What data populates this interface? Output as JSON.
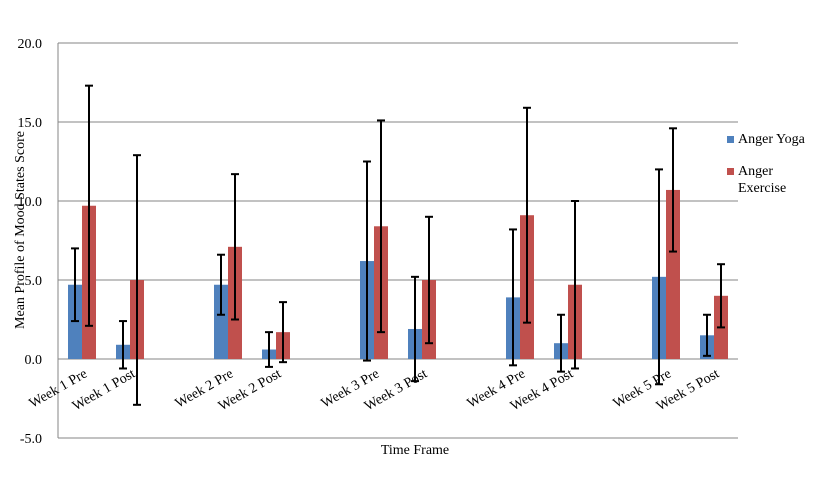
{
  "chart_data": {
    "type": "bar",
    "title": "",
    "xlabel": "Time Frame",
    "ylabel": "Mean Profile of Mood States Score",
    "ylim": [
      -5,
      20
    ],
    "yticks": [
      "-5.0",
      "0.0",
      "5.0",
      "10.0",
      "15.0",
      "20.0"
    ],
    "grid": true,
    "legend_position": "right",
    "categories": [
      "Week 1 Pre",
      "Week 1 Post",
      "Week 2 Pre",
      "Week 2 Post",
      "Week 3 Pre",
      "Week 3 Post",
      "Week 4 Pre",
      "Week 4 Post",
      "Week 5 Pre",
      "Week 5 Post"
    ],
    "series": [
      {
        "name": "Anger Yoga",
        "color": "#4f81bd",
        "values": [
          4.7,
          0.9,
          4.7,
          0.6,
          6.2,
          1.9,
          3.9,
          1.0,
          5.2,
          1.5
        ],
        "error": [
          2.3,
          1.5,
          1.9,
          1.1,
          6.3,
          3.3,
          4.3,
          1.8,
          6.8,
          1.3
        ]
      },
      {
        "name": "Anger Exercise",
        "legend_lines": [
          "Anger",
          "Exercise"
        ],
        "color": "#c0504d",
        "values": [
          9.7,
          5.0,
          7.1,
          1.7,
          8.4,
          5.0,
          9.1,
          4.7,
          10.7,
          4.0
        ],
        "error": [
          7.6,
          7.9,
          4.6,
          1.9,
          6.7,
          4.0,
          6.8,
          5.3,
          3.9,
          2.0
        ]
      }
    ]
  }
}
